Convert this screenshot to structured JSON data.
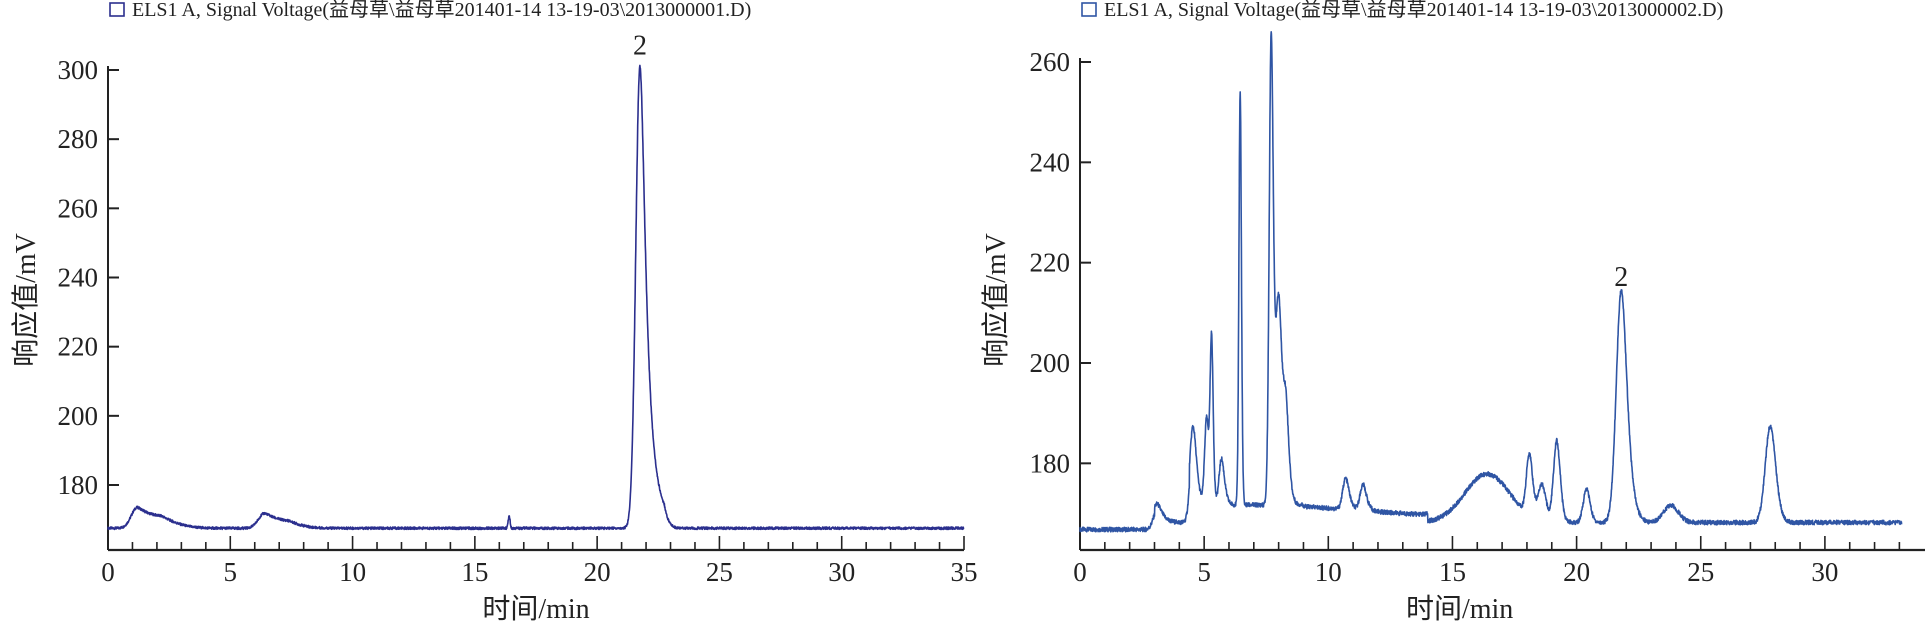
{
  "chart_data": [
    {
      "type": "line",
      "legend": "ELS1 A, Signal Voltage(益母草\\益母草201401-14 13-19-03\\2013000001.D)",
      "legend_placement": "top-left",
      "xlabel": "时间/min",
      "ylabel": "响应值/mV",
      "xlim": [
        0,
        35
      ],
      "ylim": [
        161.2,
        300
      ],
      "xticks": [
        0,
        5,
        10,
        15,
        20,
        25,
        30,
        35
      ],
      "yticks": [
        180,
        200,
        220,
        240,
        260,
        280,
        300
      ],
      "grid": false,
      "color": "#2b2f8e",
      "baseline": 167.5,
      "x_end": 35,
      "peaks": [
        {
          "t": 1.2,
          "height": 173.5,
          "width": 0.25,
          "tail": 1.2
        },
        {
          "t": 6.4,
          "height": 171.8,
          "width": 0.25,
          "tail": 1.0
        },
        {
          "t": 16.4,
          "height": 171.0,
          "width": 0.04,
          "tail": 0
        },
        {
          "t": 21.75,
          "height": 301,
          "width": 0.17,
          "tail": 0.4
        }
      ],
      "annotations": [
        {
          "text": "2",
          "x": 21.75,
          "y": 301
        }
      ]
    },
    {
      "type": "line",
      "legend": "ELS1 A, Signal Voltage(益母草\\益母草201401-14 13-19-03\\2013000002.D)",
      "legend_placement": "top-left",
      "xlabel": "时间/min",
      "ylabel": "响应值/mV",
      "xlim": [
        0,
        33.8
      ],
      "ylim": [
        162.6,
        260
      ],
      "xticks": [
        0,
        5,
        10,
        15,
        20,
        25,
        30
      ],
      "yticks": [
        180,
        200,
        220,
        240,
        260
      ],
      "grid": false,
      "color": "#2f55a4",
      "baseline": 166.8,
      "x_end": 33.1,
      "peaks": [
        {
          "t": 3.1,
          "height": 170.5,
          "width": 0.15,
          "tail": 0.3
        },
        {
          "t": 4.55,
          "height": 182.5,
          "width": 0.12,
          "tail": 0.2
        },
        {
          "t": 5.1,
          "height": 184,
          "width": 0.08,
          "tail": 0.1
        },
        {
          "t": 5.3,
          "height": 199.5,
          "width": 0.06,
          "tail": 0.1
        },
        {
          "t": 5.7,
          "height": 176,
          "width": 0.1,
          "tail": 0.2
        },
        {
          "t": 6.45,
          "height": 249,
          "width": 0.05,
          "tail": 0.05
        },
        {
          "t": 7.7,
          "height": 259,
          "width": 0.08,
          "tail": 0.1
        },
        {
          "t": 8.0,
          "height": 208,
          "width": 0.12,
          "tail": 0.2
        },
        {
          "t": 8.3,
          "height": 183,
          "width": 0.1,
          "tail": 0.2
        },
        {
          "t": 10.7,
          "height": 173,
          "width": 0.12,
          "tail": 0.2
        },
        {
          "t": 11.4,
          "height": 172,
          "width": 0.12,
          "tail": 0.2
        },
        {
          "t": 16.4,
          "height": 176.5,
          "width": 0.9,
          "tail": 0
        },
        {
          "t": 18.1,
          "height": 179,
          "width": 0.12,
          "tail": 0.1
        },
        {
          "t": 18.6,
          "height": 174,
          "width": 0.15,
          "tail": 0.1
        },
        {
          "t": 19.2,
          "height": 183,
          "width": 0.13,
          "tail": 0.1
        },
        {
          "t": 20.4,
          "height": 173.5,
          "width": 0.13,
          "tail": 0.1
        },
        {
          "t": 21.8,
          "height": 213,
          "width": 0.2,
          "tail": 0.2
        },
        {
          "t": 23.8,
          "height": 170.2,
          "width": 0.3,
          "tail": 0
        },
        {
          "t": 27.8,
          "height": 186,
          "width": 0.2,
          "tail": 0.1
        }
      ],
      "annotations": [
        {
          "text": "2",
          "x": 21.8,
          "y": 213
        }
      ]
    }
  ]
}
